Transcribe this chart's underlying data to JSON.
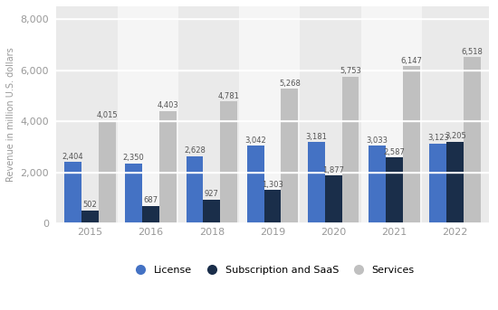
{
  "years": [
    "2015",
    "2016",
    "2018",
    "2019",
    "2020",
    "2021",
    "2022"
  ],
  "license": [
    2404,
    2350,
    2628,
    3042,
    3181,
    3033,
    3123
  ],
  "subscription": [
    502,
    687,
    927,
    1303,
    1877,
    2587,
    3205
  ],
  "services": [
    4015,
    4403,
    4781,
    5268,
    5753,
    6147,
    6518
  ],
  "license_color": "#4472c4",
  "subscription_color": "#1a2e4a",
  "services_color": "#c0c0c0",
  "ylabel": "Revenue in million U.S. dollars",
  "ylim": [
    0,
    8500
  ],
  "yticks": [
    0,
    2000,
    4000,
    6000,
    8000
  ],
  "background_color": "#ffffff",
  "plot_bg_even": "#eaeaea",
  "plot_bg_odd": "#f5f5f5",
  "grid_color": "#ffffff",
  "bar_width": 0.28,
  "legend_labels": [
    "License",
    "Subscription and SaaS",
    "Services"
  ],
  "label_fontsize": 6.0,
  "axis_fontsize": 8,
  "tick_color": "#999999",
  "label_color": "#555555"
}
